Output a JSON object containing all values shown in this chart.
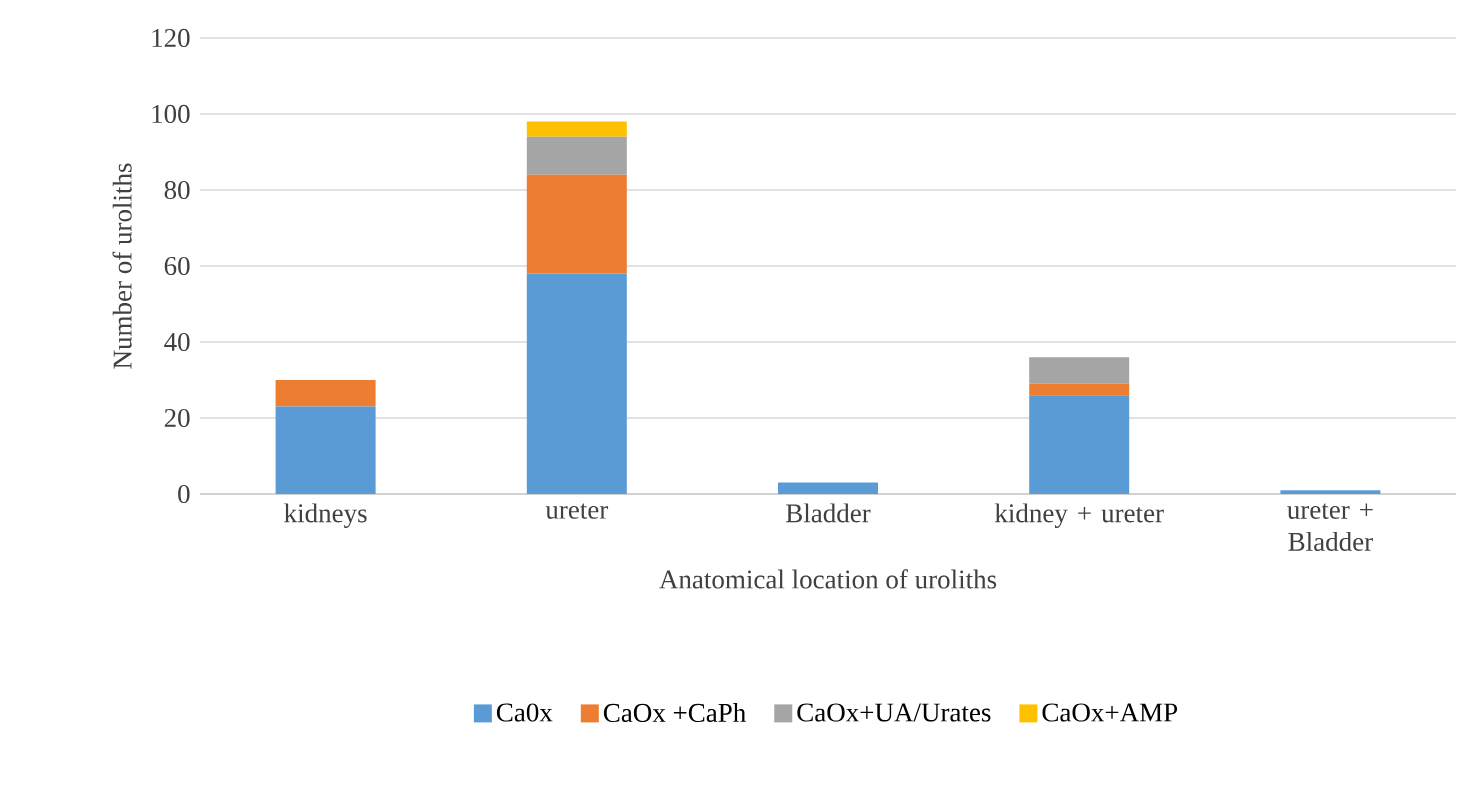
{
  "chart_data": {
    "type": "bar",
    "stacked": true,
    "xlabel": "Anatomical location of uroliths",
    "ylabel": "Number of uroliths",
    "categories": [
      "kidneys",
      "ureter",
      "Bladder",
      "kidney + ureter",
      "ureter + Bladder"
    ],
    "series": [
      {
        "name": "Ca0x",
        "color": "#5b9bd5",
        "values": [
          23,
          58,
          3,
          26,
          1
        ]
      },
      {
        "name": "CaOx +CaPh",
        "color": "#ed7d31",
        "values": [
          7,
          26,
          0,
          3,
          0
        ]
      },
      {
        "name": "CaOx+UA/Urates",
        "color": "#a5a5a5",
        "values": [
          0,
          10,
          0,
          7,
          0
        ]
      },
      {
        "name": "CaOx+AMP",
        "color": "#ffc000",
        "values": [
          0,
          4,
          0,
          0,
          0
        ]
      }
    ],
    "ylim": [
      0,
      120
    ],
    "yticks": [
      0,
      20,
      40,
      60,
      80,
      100,
      120
    ],
    "grid": "y",
    "legend": "bottom"
  }
}
